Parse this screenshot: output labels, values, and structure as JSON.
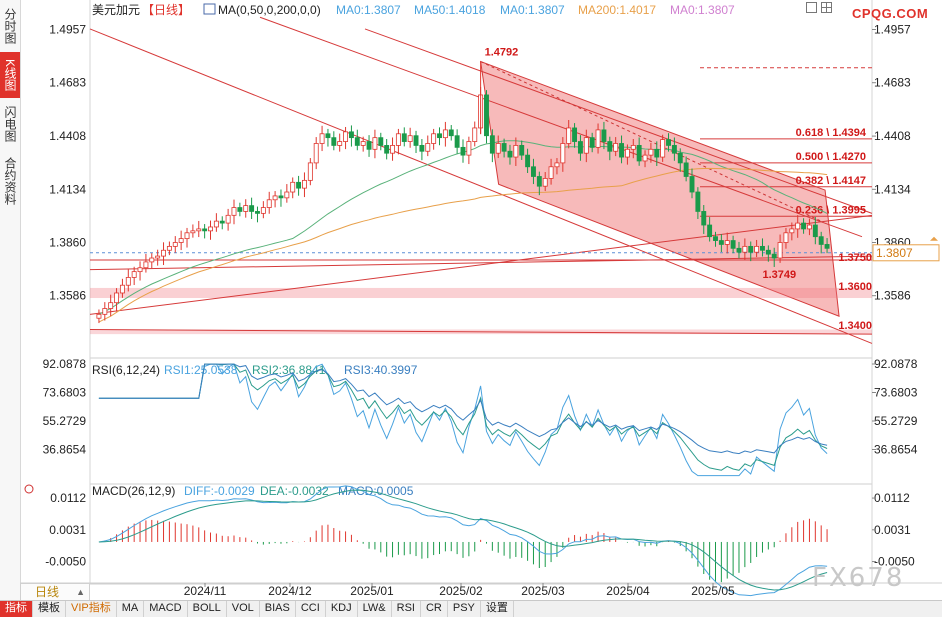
{
  "app": {
    "left_tabs": [
      "分时图",
      "K线图",
      "闪电图",
      "合约资料"
    ],
    "active_left_tab": 1,
    "period_label": "日线",
    "bottom_tabs": [
      "指标",
      "模板",
      "VIP指标",
      "MA",
      "MACD",
      "BOLL",
      "VOL",
      "BIAS",
      "CCI",
      "KDJ",
      "LW&",
      "RSI",
      "CR",
      "PSY",
      "设置"
    ],
    "watermark_site": "CPQG.COM",
    "watermark_text": "FX678"
  },
  "chart_data": {
    "type": "candlestick",
    "symbol": "美元加元",
    "period_tag": "【日线】",
    "indicator_label": "MA(0,50,0,200,0,0)",
    "ma_readouts": [
      {
        "text": "MA0:1.3807",
        "color": "#4aa3df"
      },
      {
        "text": "MA50:1.4018",
        "color": "#4aa3df"
      },
      {
        "text": "MA0:1.3807",
        "color": "#4aa3df"
      },
      {
        "text": "MA200:1.4017",
        "color": "#e8a04a"
      },
      {
        "text": "MA0:1.3807",
        "color": "#d080d0"
      }
    ],
    "price_ticks": [
      "1.4957",
      "1.4683",
      "1.4408",
      "1.4134",
      "1.3860",
      "1.3586"
    ],
    "ylim": [
      1.3296,
      1.5006
    ],
    "current_price": "1.3807",
    "x_ticks": [
      "2024/11",
      "2024/12",
      "2025/01",
      "2025/02",
      "2025/03",
      "2025/04",
      "2025/05"
    ],
    "annotations": {
      "high": "1.4792",
      "low": "1.3749",
      "fib_levels": [
        {
          "label": "0.618 \\ 1.4394",
          "value": 1.4394
        },
        {
          "label": "0.500 \\ 1.4270",
          "value": 1.427
        },
        {
          "label": "0.382 \\ 1.4147",
          "value": 1.4147
        },
        {
          "label": "0.236 \\ 1.3995",
          "value": 1.3995
        }
      ],
      "support_levels": [
        {
          "label": "1.3750",
          "value": 1.375
        },
        {
          "label": "1.3600",
          "value": 1.36
        },
        {
          "label": "1.3400",
          "value": 1.34
        }
      ]
    },
    "close_path": [
      1.349,
      1.352,
      1.355,
      1.36,
      1.364,
      1.368,
      1.371,
      1.373,
      1.376,
      1.378,
      1.379,
      1.382,
      1.384,
      1.386,
      1.388,
      1.391,
      1.392,
      1.393,
      1.392,
      1.394,
      1.397,
      1.396,
      1.4,
      1.404,
      1.402,
      1.405,
      1.402,
      1.401,
      1.404,
      1.408,
      1.41,
      1.409,
      1.412,
      1.417,
      1.414,
      1.418,
      1.427,
      1.437,
      1.442,
      1.44,
      1.436,
      1.438,
      1.443,
      1.44,
      1.436,
      1.438,
      1.434,
      1.44,
      1.436,
      1.432,
      1.436,
      1.442,
      1.438,
      1.441,
      1.436,
      1.433,
      1.437,
      1.442,
      1.44,
      1.444,
      1.441,
      1.435,
      1.431,
      1.438,
      1.445,
      1.462,
      1.441,
      1.432,
      1.437,
      1.433,
      1.43,
      1.436,
      1.431,
      1.425,
      1.42,
      1.415,
      1.419,
      1.425,
      1.427,
      1.437,
      1.445,
      1.438,
      1.432,
      1.44,
      1.435,
      1.444,
      1.438,
      1.433,
      1.437,
      1.43,
      1.434,
      1.436,
      1.428,
      1.431,
      1.434,
      1.43,
      1.439,
      1.436,
      1.432,
      1.427,
      1.42,
      1.412,
      1.402,
      1.395,
      1.389,
      1.387,
      1.385,
      1.387,
      1.383,
      1.381,
      1.384,
      1.381,
      1.384,
      1.382,
      1.38,
      1.378,
      1.386,
      1.391,
      1.393,
      1.396,
      1.393,
      1.395,
      1.389,
      1.385,
      1.383
    ],
    "rsi": {
      "label": "RSI(6,12,24)",
      "readouts": [
        {
          "text": "RSI1:25.0538",
          "color": "#4aa3df"
        },
        {
          "text": "RSI2:36.8841",
          "color": "#2c9c8c"
        },
        {
          "text": "RSI3:40.3997",
          "color": "#3a7fc0"
        }
      ],
      "ticks": [
        "92.0878",
        "73.6803",
        "55.2729",
        "36.8654"
      ],
      "ylim": [
        18.4579,
        92.0878
      ]
    },
    "macd": {
      "label": "MACD(26,12,9)",
      "readouts": [
        {
          "text": "DIFF:-0.0029",
          "color": "#4aa3df"
        },
        {
          "text": "DEA:-0.0032",
          "color": "#2c9c8c"
        },
        {
          "text": "MACD:0.0005",
          "color": "#3a7fc0"
        }
      ],
      "ticks": [
        "0.0112",
        "0.0031",
        "-0.0050"
      ],
      "ylim": [
        -0.0092,
        0.0153
      ]
    }
  }
}
